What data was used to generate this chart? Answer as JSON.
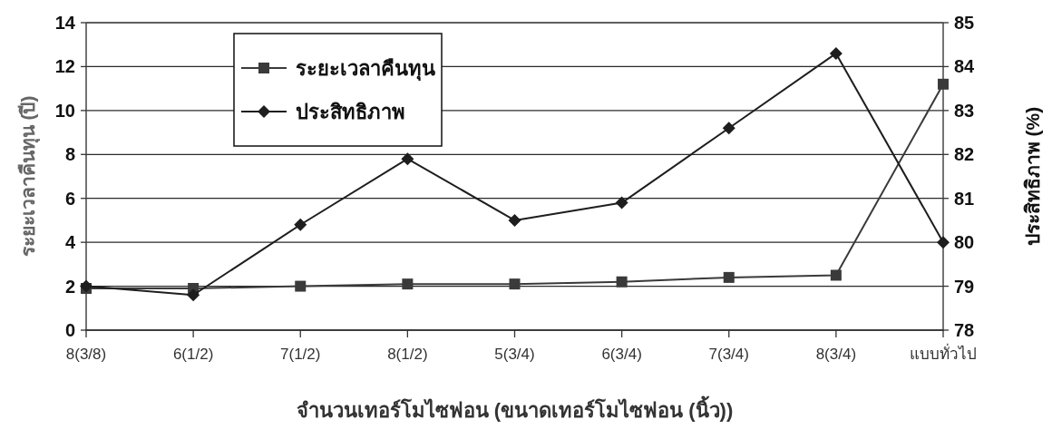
{
  "chart_data": {
    "type": "line",
    "categories": [
      "8(3/8)",
      "6(1/2)",
      "7(1/2)",
      "8(1/2)",
      "5(3/4)",
      "6(3/4)",
      "7(3/4)",
      "8(3/4)",
      "แบบทั่วไป"
    ],
    "xlabel": "จำนวนเทอร์โมไซฟอน (ขนาดเทอร์โมไซฟอน (นิ้ว))",
    "ylabel": "ระยะเวลาคืนทุน (ปี)",
    "y2label": "ประสิทธิภาพ (%)",
    "ylim": [
      0,
      14
    ],
    "yticks": [
      0,
      2,
      4,
      6,
      8,
      10,
      12,
      14
    ],
    "y2lim": [
      78,
      85
    ],
    "y2ticks": [
      78,
      79,
      80,
      81,
      82,
      83,
      84,
      85
    ],
    "grid": "y",
    "legend": "top left",
    "series": [
      {
        "name": "ระยะเวลาคืนทุน",
        "color": "#3a3a3a",
        "marker": "square",
        "values": [
          1.9,
          1.9,
          2.0,
          2.1,
          2.1,
          2.2,
          2.4,
          2.5,
          11.2
        ]
      },
      {
        "name": "ประสิทธิภาพ",
        "color": "#1e1e1e",
        "marker": "diamond",
        "axis": "y2",
        "values": [
          79.0,
          78.8,
          80.4,
          81.9,
          80.5,
          80.9,
          82.6,
          84.3,
          80.0
        ]
      }
    ]
  }
}
